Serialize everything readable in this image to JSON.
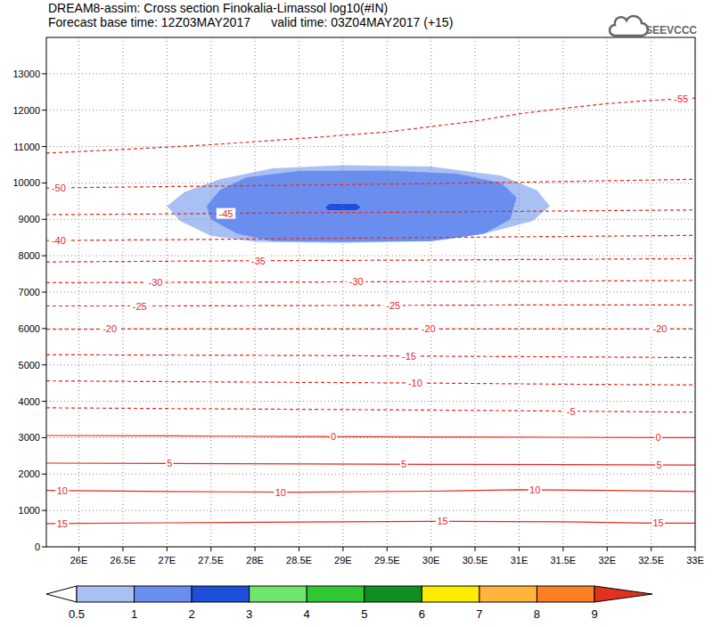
{
  "chart_data": {
    "type": "contour",
    "title": "DREAM8-assim: Cross section Finokalia-Limassol log10(#IN)",
    "subtitle": "Forecast base time: 12Z03MAY2017      valid time: 03Z04MAY2017 (+15)",
    "logo": "SEEVCCC",
    "grid": true,
    "color": "#e8281e",
    "xlim": [
      25.63,
      33
    ],
    "ylim": [
      0,
      14000
    ],
    "xticks": [
      {
        "value": 26,
        "label": "26E"
      },
      {
        "value": 26.5,
        "label": "26.5E"
      },
      {
        "value": 27,
        "label": "27E"
      },
      {
        "value": 27.5,
        "label": "27.5E"
      },
      {
        "value": 28,
        "label": "28E"
      },
      {
        "value": 28.5,
        "label": "28.5E"
      },
      {
        "value": 29,
        "label": "29E"
      },
      {
        "value": 29.5,
        "label": "29.5E"
      },
      {
        "value": 30,
        "label": "30E"
      },
      {
        "value": 30.5,
        "label": "30.5E"
      },
      {
        "value": 31,
        "label": "31E"
      },
      {
        "value": 31.5,
        "label": "31.5E"
      },
      {
        "value": 32,
        "label": "32E"
      },
      {
        "value": 32.5,
        "label": "32.5E"
      },
      {
        "value": 33,
        "label": "33E"
      }
    ],
    "yticks": [
      0,
      1000,
      2000,
      3000,
      4000,
      5000,
      6000,
      7000,
      8000,
      9000,
      10000,
      11000,
      12000,
      13000
    ],
    "colorbar": {
      "levels": [
        0.5,
        1,
        2,
        3,
        4,
        5,
        6,
        7,
        8,
        9
      ],
      "colors": [
        "#a8c0f2",
        "#6a8ef0",
        "#1e4fd8",
        "#6ee66e",
        "#2fc832",
        "#0f8f1f",
        "#ffeb00",
        "#ffb43c",
        "#ff7f27"
      ],
      "under_color": "#ffffff",
      "over_color": "#e0321e"
    },
    "filled_contours": [
      {
        "level": 0.5,
        "x": [
          27.0,
          27.2,
          27.6,
          28.2,
          29.0,
          30.0,
          30.8,
          31.2,
          31.35,
          31.15,
          30.6,
          30.0,
          29.0,
          28.0,
          27.5,
          27.15
        ],
        "y": [
          9360,
          9750,
          10100,
          10400,
          10490,
          10450,
          10200,
          9800,
          9360,
          8950,
          8600,
          8400,
          8350,
          8380,
          8550,
          8950
        ]
      },
      {
        "level": 1,
        "x": [
          27.45,
          27.6,
          27.9,
          28.5,
          29.5,
          30.3,
          30.8,
          30.97,
          30.9,
          30.6,
          30.0,
          29.0,
          28.2,
          27.8,
          27.5
        ],
        "y": [
          9360,
          9800,
          10150,
          10330,
          10340,
          10250,
          10000,
          9600,
          9000,
          8600,
          8400,
          8380,
          8400,
          8600,
          9000
        ]
      },
      {
        "level": 2,
        "x": [
          28.83,
          29.15,
          29.2,
          29.15,
          28.85,
          28.8
        ],
        "y": [
          9250,
          9250,
          9330,
          9420,
          9420,
          9330
        ]
      }
    ],
    "contour_lines": [
      {
        "level": -55,
        "line_style": "dashed",
        "x": [
          25.63,
          26.5,
          27.5,
          28.5,
          29.5,
          30.5,
          31,
          31.5,
          32,
          32.5,
          33
        ],
        "values": [
          10820,
          10920,
          11050,
          11220,
          11400,
          11700,
          11900,
          12050,
          12180,
          12270,
          12330
        ],
        "label_x": [
          32.84
        ]
      },
      {
        "level": -50,
        "line_style": "dashed",
        "x": [
          25.63,
          27,
          28.5,
          30,
          31.5,
          33
        ],
        "values": [
          9860,
          9900,
          9940,
          9980,
          10040,
          10100
        ],
        "label_x": [
          25.77
        ]
      },
      {
        "level": -45,
        "line_style": "dashed",
        "x": [
          25.63,
          27,
          28.5,
          30,
          31.5,
          33
        ],
        "values": [
          9130,
          9150,
          9180,
          9200,
          9230,
          9260
        ],
        "label_x": [
          27.67
        ]
      },
      {
        "level": -40,
        "line_style": "dashed",
        "x": [
          25.63,
          27,
          28.5,
          30,
          31.5,
          33
        ],
        "values": [
          8420,
          8440,
          8470,
          8500,
          8530,
          8560
        ],
        "label_x": [
          25.77
        ]
      },
      {
        "level": -35,
        "line_style": "dashed",
        "x": [
          25.63,
          27,
          28.5,
          30,
          31.5,
          33
        ],
        "values": [
          7830,
          7850,
          7870,
          7880,
          7900,
          7920
        ],
        "label_x": [
          28.04
        ]
      },
      {
        "level": -30,
        "line_style": "dashed",
        "x": [
          25.63,
          27,
          28.5,
          30,
          31.5,
          33
        ],
        "values": [
          7260,
          7270,
          7280,
          7290,
          7300,
          7320
        ],
        "label_x": [
          26.87,
          29.15
        ]
      },
      {
        "level": -25,
        "line_style": "dashed",
        "x": [
          25.63,
          27,
          28.5,
          30,
          31.5,
          33
        ],
        "values": [
          6620,
          6620,
          6630,
          6640,
          6650,
          6650
        ],
        "label_x": [
          26.69,
          29.57
        ]
      },
      {
        "level": -20,
        "line_style": "dashed",
        "x": [
          25.63,
          27,
          28.5,
          30,
          31.5,
          33
        ],
        "values": [
          5980,
          5990,
          5990,
          5990,
          5990,
          5990
        ],
        "label_x": [
          26.35,
          29.97,
          32.6
        ]
      },
      {
        "level": -15,
        "line_style": "dashed",
        "x": [
          25.63,
          27,
          28.5,
          30,
          31.5,
          33
        ],
        "values": [
          5280,
          5270,
          5260,
          5240,
          5220,
          5200
        ],
        "label_x": [
          29.75
        ]
      },
      {
        "level": -10,
        "line_style": "dashed",
        "x": [
          25.63,
          27,
          28.5,
          30,
          31.5,
          33
        ],
        "values": [
          4560,
          4540,
          4520,
          4500,
          4470,
          4450
        ],
        "label_x": [
          29.82
        ]
      },
      {
        "level": -5,
        "line_style": "dashed",
        "x": [
          25.63,
          27,
          28.5,
          30,
          31.5,
          33
        ],
        "values": [
          3820,
          3800,
          3780,
          3760,
          3730,
          3700
        ],
        "label_x": [
          31.59
        ]
      },
      {
        "level": 0,
        "line_style": "solid",
        "x": [
          25.63,
          27,
          28.5,
          30,
          31.5,
          33
        ],
        "values": [
          3060,
          3050,
          3030,
          3020,
          3010,
          3000
        ],
        "label_x": [
          28.89,
          32.58
        ]
      },
      {
        "level": 5,
        "line_style": "solid",
        "x": [
          25.63,
          27,
          28.5,
          30,
          31.5,
          33
        ],
        "values": [
          2300,
          2290,
          2280,
          2270,
          2260,
          2250
        ],
        "label_x": [
          27.03,
          29.69,
          32.59
        ]
      },
      {
        "level": 10,
        "line_style": "solid",
        "x": [
          25.63,
          27,
          28.5,
          30,
          31,
          32,
          33
        ],
        "values": [
          1550,
          1520,
          1500,
          1530,
          1570,
          1550,
          1520
        ],
        "label_x": [
          25.81,
          28.29,
          31.18
        ]
      },
      {
        "level": 15,
        "line_style": "solid",
        "x": [
          25.63,
          27,
          28.5,
          30,
          31.5,
          32.5,
          33
        ],
        "values": [
          640,
          660,
          680,
          700,
          690,
          650,
          650
        ],
        "label_x": [
          25.81,
          30.13,
          32.58
        ]
      }
    ]
  }
}
